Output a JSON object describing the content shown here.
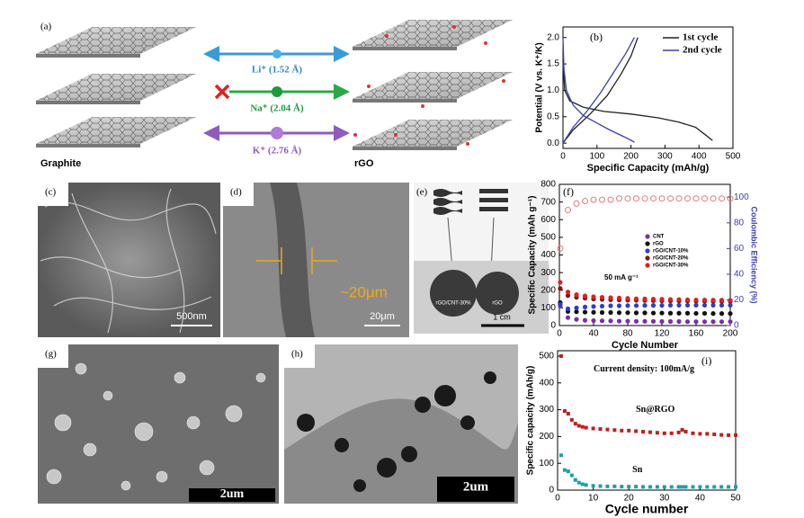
{
  "schematic": {
    "panel": "(a)",
    "ions": [
      "Li⁺ (1.52 Å)",
      "Na⁺ (2.04 Å)",
      "K⁺ (2.76 Å)"
    ],
    "left": "Graphite",
    "right": "rGO"
  },
  "images": {
    "c": {
      "panel": "(c)",
      "scale": "500nm"
    },
    "d": {
      "panel": "(d)",
      "note": "~20μm",
      "scale": "20μm"
    },
    "e": {
      "panel": "(e)",
      "left": "rGO/CNT-30%",
      "right": "rGO",
      "scale": "1 cm"
    },
    "g": {
      "panel": "(g)",
      "scale": "2um"
    },
    "h": {
      "panel": "(h)",
      "scale": "2um"
    }
  },
  "chart_data": [
    {
      "type": "line",
      "panel": "(b)",
      "xlabel": "Specific Capacity (mAh/g)",
      "ylabel": "Potential (V vs. K⁺/K)",
      "xlim": [
        0,
        500
      ],
      "xticks": [
        0,
        100,
        200,
        300,
        400,
        500
      ],
      "ylim": [
        -0.1,
        2.2
      ],
      "yticks": [
        {
          "value": 0,
          "label": "0.0"
        },
        {
          "value": 0.5,
          "label": "0.5"
        },
        {
          "value": 1,
          "label": "1.0"
        },
        {
          "value": 1.5,
          "label": "1.5"
        },
        {
          "value": 2,
          "label": "2.0"
        }
      ],
      "series": [
        {
          "name": "1st cycle",
          "color": "#222222",
          "x": [
            0,
            5,
            20,
            60,
            120,
            200,
            280,
            340,
            390,
            420,
            440,
            null,
            0,
            30,
            80,
            130,
            170,
            200,
            220
          ],
          "values": [
            1.55,
            1.0,
            0.8,
            0.68,
            0.6,
            0.55,
            0.48,
            0.4,
            0.3,
            0.15,
            0.05,
            null,
            0.0,
            0.25,
            0.55,
            0.9,
            1.3,
            1.65,
            2.0
          ]
        },
        {
          "name": "2nd cycle",
          "color": "#3a3fb0",
          "x": [
            0,
            3,
            10,
            30,
            60,
            100,
            140,
            180,
            210,
            null,
            0,
            30,
            70,
            110,
            150,
            185,
            210
          ],
          "values": [
            2.0,
            1.4,
            1.0,
            0.72,
            0.52,
            0.38,
            0.24,
            0.12,
            0.02,
            null,
            0.0,
            0.3,
            0.6,
            0.95,
            1.35,
            1.7,
            2.0
          ]
        }
      ]
    },
    {
      "type": "scatter",
      "panel": "(f)",
      "xlabel": "Cycle Number",
      "ylabel": "Specific Capacity (mAh g⁻¹)",
      "y2label": "Coulombic Efficiency (%)",
      "annotation": "50 mA g⁻¹",
      "xlim": [
        0,
        200
      ],
      "xticks": [
        0,
        40,
        80,
        120,
        160,
        200
      ],
      "ylim": [
        0,
        800
      ],
      "yticks": [
        0,
        100,
        200,
        300,
        400,
        500,
        600,
        700,
        800
      ],
      "y2lim": [
        0,
        110
      ],
      "y2ticks": [
        0,
        20,
        40,
        60,
        80,
        100
      ],
      "x": [
        1,
        10,
        20,
        30,
        40,
        50,
        60,
        70,
        80,
        90,
        100,
        110,
        120,
        130,
        140,
        150,
        160,
        170,
        180,
        190,
        200
      ],
      "series": [
        {
          "name": "CNT",
          "color": "#7b2fa8",
          "values": [
            110,
            45,
            35,
            30,
            28,
            27,
            26,
            25,
            25,
            24,
            24,
            24,
            23,
            23,
            23,
            22,
            22,
            22,
            22,
            22,
            22
          ]
        },
        {
          "name": "rGO",
          "color": "#111111",
          "values": [
            130,
            80,
            78,
            76,
            75,
            74,
            74,
            73,
            73,
            72,
            72,
            71,
            71,
            70,
            70,
            70,
            69,
            69,
            68,
            68,
            68
          ]
        },
        {
          "name": "rGO/CNT-10%",
          "color": "#2a3fc8",
          "values": [
            120,
            95,
            100,
            105,
            108,
            110,
            112,
            112,
            113,
            113,
            114,
            114,
            114,
            115,
            115,
            115,
            115,
            115,
            115,
            115,
            115
          ]
        },
        {
          "name": "rGO/CNT-20%",
          "color": "#8b1010",
          "values": [
            210,
            170,
            160,
            155,
            150,
            148,
            146,
            145,
            144,
            143,
            142,
            141,
            140,
            140,
            139,
            139,
            138,
            138,
            137,
            137,
            137
          ]
        },
        {
          "name": "rGO/CNT-30%",
          "color": "#e02020",
          "values": [
            245,
            190,
            175,
            168,
            163,
            160,
            158,
            156,
            154,
            152,
            151,
            150,
            149,
            148,
            147,
            146,
            145,
            145,
            144,
            144,
            143
          ]
        }
      ],
      "efficiency": {
        "color": "#e87878",
        "axis": "y2",
        "values": [
          60,
          90,
          95,
          97,
          98,
          98,
          98,
          99,
          99,
          99,
          99,
          99,
          99,
          99,
          99,
          99,
          99,
          99,
          99,
          99,
          99
        ]
      }
    },
    {
      "type": "scatter",
      "panel": "(i)",
      "xlabel": "Cycle number",
      "ylabel": "Specific capacity (mAh/g)",
      "annotations": [
        "Current density: 100mA/g",
        "Sn@RGO",
        "Sn"
      ],
      "xlim": [
        0,
        50
      ],
      "xticks": [
        0,
        10,
        20,
        30,
        40,
        50
      ],
      "ylim": [
        0,
        520
      ],
      "yticks": [
        0,
        100,
        200,
        300,
        400,
        500
      ],
      "marker": "square",
      "x": [
        1,
        2,
        3,
        4,
        5,
        6,
        7,
        8,
        10,
        12,
        14,
        16,
        18,
        20,
        22,
        24,
        26,
        28,
        30,
        32,
        34,
        35,
        36,
        38,
        40,
        42,
        44,
        46,
        48,
        50
      ],
      "series": [
        {
          "name": "Sn@RGO",
          "color": "#c0201a",
          "values": [
            500,
            295,
            285,
            262,
            248,
            240,
            236,
            233,
            230,
            228,
            226,
            224,
            222,
            222,
            220,
            218,
            216,
            214,
            212,
            212,
            215,
            225,
            218,
            212,
            210,
            210,
            208,
            206,
            205,
            205
          ]
        },
        {
          "name": "Sn",
          "color": "#1aa0a8",
          "values": [
            130,
            75,
            70,
            55,
            38,
            28,
            22,
            19,
            16,
            15,
            14,
            14,
            13,
            13,
            13,
            12,
            12,
            12,
            12,
            12,
            12,
            12,
            12,
            12,
            12,
            12,
            12,
            12,
            12,
            12
          ]
        }
      ]
    }
  ]
}
